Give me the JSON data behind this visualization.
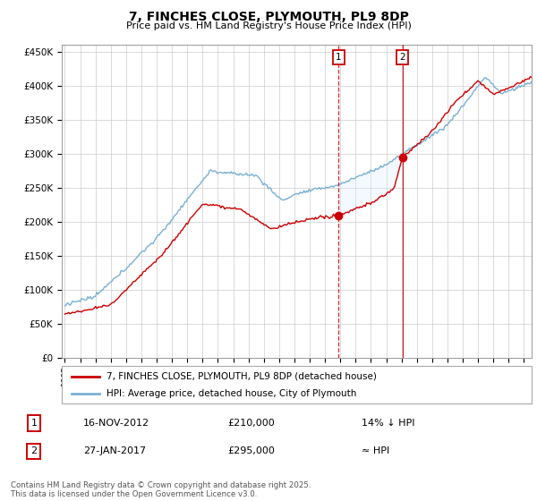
{
  "title": "7, FINCHES CLOSE, PLYMOUTH, PL9 8DP",
  "subtitle": "Price paid vs. HM Land Registry's House Price Index (HPI)",
  "legend_label_red": "7, FINCHES CLOSE, PLYMOUTH, PL9 8DP (detached house)",
  "legend_label_blue": "HPI: Average price, detached house, City of Plymouth",
  "footer": "Contains HM Land Registry data © Crown copyright and database right 2025.\nThis data is licensed under the Open Government Licence v3.0.",
  "annotation1_date": "16-NOV-2012",
  "annotation1_price": "£210,000",
  "annotation1_hpi": "14% ↓ HPI",
  "annotation2_date": "27-JAN-2017",
  "annotation2_price": "£295,000",
  "annotation2_hpi": "≈ HPI",
  "red_color": "#cc0000",
  "blue_color": "#7ab0d4",
  "shading_color": "#ddeeff",
  "ylim_min": 0,
  "ylim_max": 460000,
  "year_start": 1995,
  "year_end": 2025,
  "sale1_year": 2012.88,
  "sale1_price": 210000,
  "sale2_year": 2017.07,
  "sale2_price": 295000
}
